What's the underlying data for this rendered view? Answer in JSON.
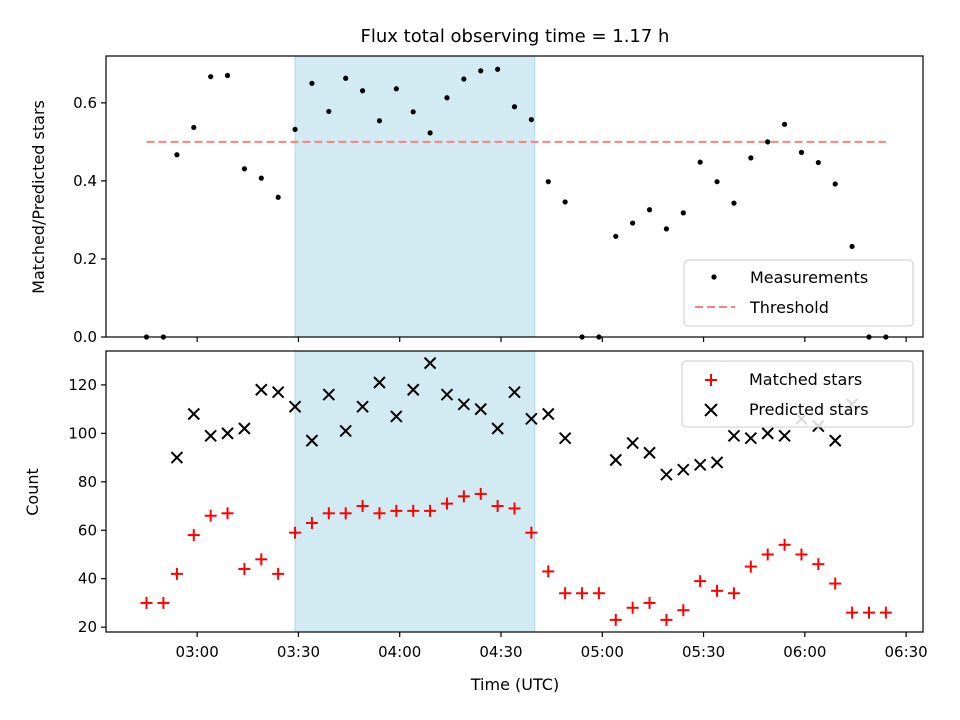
{
  "chart_data": [
    {
      "type": "scatter",
      "title": "Flux total observing time = 1.17 h",
      "xlabel": "",
      "ylabel": "Matched/Predicted stars",
      "xlim": [
        "02:33",
        "06:35"
      ],
      "ylim": [
        0,
        0.72
      ],
      "yticks": [
        0.0,
        0.2,
        0.4,
        0.6
      ],
      "ytick_labels": [
        "0.0",
        "0.2",
        "0.4",
        "0.6"
      ],
      "highlight_span": {
        "start": "03:29",
        "end": "04:40",
        "color": "#add8e6"
      },
      "legend": {
        "placement": "lower right",
        "entries": [
          "Measurements",
          "Threshold"
        ]
      },
      "series": [
        {
          "name": "Measurements",
          "marker": "dot",
          "color": "#000000",
          "x": [
            "02:45",
            "02:50",
            "02:54",
            "02:59",
            "03:04",
            "03:09",
            "03:14",
            "03:19",
            "03:24",
            "03:29",
            "03:34",
            "03:39",
            "03:44",
            "03:49",
            "03:54",
            "03:59",
            "04:04",
            "04:09",
            "04:14",
            "04:19",
            "04:24",
            "04:29",
            "04:34",
            "04:39",
            "04:44",
            "04:49",
            "04:54",
            "04:59",
            "05:04",
            "05:09",
            "05:14",
            "05:19",
            "05:24",
            "05:29",
            "05:34",
            "05:39",
            "05:44",
            "05:49",
            "05:54",
            "05:59",
            "06:04",
            "06:09",
            "06:14",
            "06:19",
            "06:24"
          ],
          "values": [
            0.0,
            0.0,
            0.467,
            0.537,
            0.667,
            0.67,
            0.431,
            0.407,
            0.358,
            0.532,
            0.65,
            0.578,
            0.663,
            0.631,
            0.554,
            0.636,
            0.577,
            0.523,
            0.613,
            0.661,
            0.682,
            0.686,
            0.59,
            0.557,
            0.398,
            0.346,
            0.0,
            0.0,
            0.258,
            0.292,
            0.326,
            0.277,
            0.318,
            0.448,
            0.398,
            0.343,
            0.459,
            0.5,
            0.545,
            0.473,
            0.447,
            0.392,
            0.232,
            0.0,
            0.0
          ]
        },
        {
          "name": "Threshold",
          "marker": "dashed-line",
          "color": "#ff7f7f",
          "x": [
            "02:45",
            "06:24"
          ],
          "values": [
            0.5,
            0.5
          ]
        }
      ]
    },
    {
      "type": "scatter",
      "title": "",
      "xlabel": "Time (UTC)",
      "ylabel": "Count",
      "xlim": [
        "02:33",
        "06:35"
      ],
      "ylim": [
        18,
        134
      ],
      "yticks": [
        20,
        40,
        60,
        80,
        100,
        120
      ],
      "ytick_labels": [
        "20",
        "40",
        "60",
        "80",
        "100",
        "120"
      ],
      "xticks": [
        "03:00",
        "03:30",
        "04:00",
        "04:30",
        "05:00",
        "05:30",
        "06:00",
        "06:30"
      ],
      "xtick_labels": [
        "03:00",
        "03:30",
        "04:00",
        "04:30",
        "05:00",
        "05:30",
        "06:00",
        "06:30"
      ],
      "highlight_span": {
        "start": "03:29",
        "end": "04:40",
        "color": "#add8e6"
      },
      "legend": {
        "placement": "upper right",
        "entries": [
          "Matched stars",
          "Predicted stars"
        ]
      },
      "series": [
        {
          "name": "Matched stars",
          "marker": "plus",
          "color": "#ff0000",
          "x": [
            "02:45",
            "02:50",
            "02:54",
            "02:59",
            "03:04",
            "03:09",
            "03:14",
            "03:19",
            "03:24",
            "03:29",
            "03:34",
            "03:39",
            "03:44",
            "03:49",
            "03:54",
            "03:59",
            "04:04",
            "04:09",
            "04:14",
            "04:19",
            "04:24",
            "04:29",
            "04:34",
            "04:39",
            "04:44",
            "04:49",
            "04:54",
            "04:59",
            "05:04",
            "05:09",
            "05:14",
            "05:19",
            "05:24",
            "05:29",
            "05:34",
            "05:39",
            "05:44",
            "05:49",
            "05:54",
            "05:59",
            "06:04",
            "06:09",
            "06:14",
            "06:19",
            "06:24"
          ],
          "values": [
            30,
            30,
            42,
            58,
            66,
            67,
            44,
            48,
            42,
            59,
            63,
            67,
            67,
            70,
            67,
            68,
            68,
            68,
            71,
            74,
            75,
            70,
            69,
            59,
            43,
            34,
            34,
            34,
            23,
            28,
            30,
            23,
            27,
            39,
            35,
            34,
            45,
            50,
            54,
            50,
            46,
            38,
            26,
            26,
            26
          ]
        },
        {
          "name": "Predicted stars",
          "marker": "x",
          "color": "#000000",
          "x": [
            "02:54",
            "02:59",
            "03:04",
            "03:09",
            "03:14",
            "03:19",
            "03:24",
            "03:29",
            "03:34",
            "03:39",
            "03:44",
            "03:49",
            "03:54",
            "03:59",
            "04:04",
            "04:09",
            "04:14",
            "04:19",
            "04:24",
            "04:29",
            "04:34",
            "04:39",
            "04:44",
            "04:49",
            "05:04",
            "05:09",
            "05:14",
            "05:19",
            "05:24",
            "05:29",
            "05:34",
            "05:39",
            "05:44",
            "05:49",
            "05:54",
            "05:59",
            "06:04",
            "06:09",
            "06:14"
          ],
          "values": [
            90,
            108,
            99,
            100,
            102,
            118,
            117,
            111,
            97,
            116,
            101,
            111,
            121,
            107,
            118,
            129,
            116,
            112,
            110,
            102,
            117,
            106,
            108,
            98,
            89,
            96,
            92,
            83,
            85,
            87,
            88,
            99,
            98,
            100,
            99,
            106,
            103,
            97,
            112
          ]
        }
      ]
    }
  ]
}
